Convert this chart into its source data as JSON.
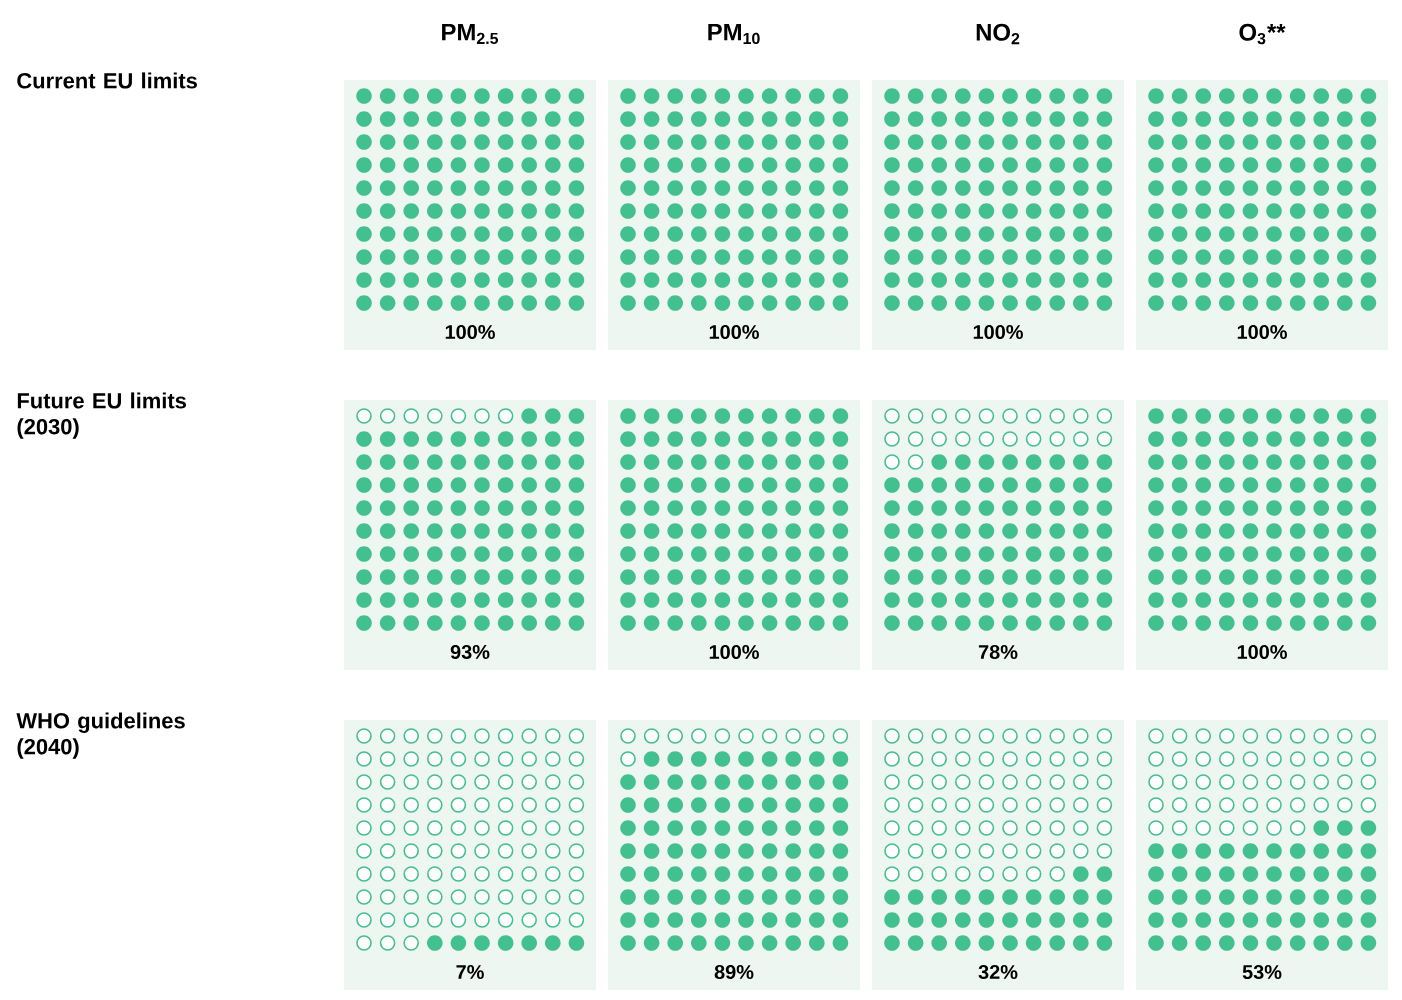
{
  "chart_data": {
    "type": "heatmap",
    "categories": [
      "PM$_{2.5}$",
      "PM$_{10}$",
      "NO$_{2}$",
      "O$_{3}$**"
    ],
    "y_categories": [
      "Current EU limits",
      "Future EU limits (2030)",
      "WHO guidelines (2040)"
    ],
    "cells": [
      [
        100,
        100,
        100,
        100
      ],
      [
        93,
        100,
        78,
        100
      ],
      [
        7,
        89,
        32,
        53
      ]
    ],
    "cell_labels": [
      [
        "100%",
        "100%",
        "100%",
        "100%"
      ],
      [
        "93%",
        "100%",
        "78%",
        "100%"
      ],
      [
        "7%",
        "89%",
        "32%",
        "53%"
      ]
    ],
    "color": "#43c08f"
  }
}
